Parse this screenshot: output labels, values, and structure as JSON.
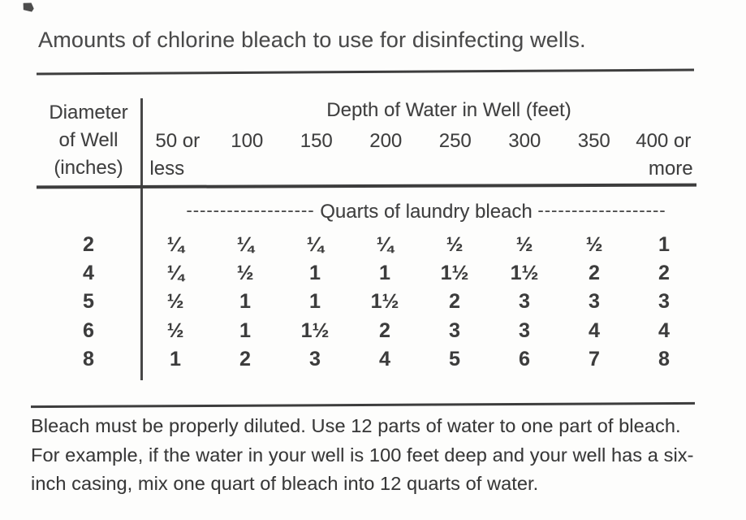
{
  "title": "Amounts of chlorine bleach to use for disinfecting wells.",
  "table": {
    "row_header": {
      "line1": "Diameter",
      "line2": "of Well",
      "line3": "(inches)"
    },
    "span_header": "Depth of Water in Well (feet)",
    "columns": [
      {
        "line1": "50 or",
        "line2": "less"
      },
      {
        "line1": "100",
        "line2": ""
      },
      {
        "line1": "150",
        "line2": ""
      },
      {
        "line1": "200",
        "line2": ""
      },
      {
        "line1": "250",
        "line2": ""
      },
      {
        "line1": "300",
        "line2": ""
      },
      {
        "line1": "350",
        "line2": ""
      },
      {
        "line1": "400 or",
        "line2": "more"
      }
    ],
    "units_dashes_left": "-------------------",
    "units_label": "Quarts of laundry bleach",
    "units_dashes_right": "-------------------",
    "rows": [
      {
        "diameter": "2",
        "values": [
          "¼",
          "¼",
          "¼",
          "¼",
          "½",
          "½",
          "½",
          "1"
        ]
      },
      {
        "diameter": "4",
        "values": [
          "¼",
          "½",
          "1",
          "1",
          "1½",
          "1½",
          "2",
          "2"
        ]
      },
      {
        "diameter": "5",
        "values": [
          "½",
          "1",
          "1",
          "1½",
          "2",
          "3",
          "3",
          "3"
        ]
      },
      {
        "diameter": "6",
        "values": [
          "½",
          "1",
          "1½",
          "2",
          "3",
          "3",
          "4",
          "4"
        ]
      },
      {
        "diameter": "8",
        "values": [
          "1",
          "2",
          "3",
          "4",
          "5",
          "6",
          "7",
          "8"
        ]
      }
    ]
  },
  "footnote": {
    "line1": "Bleach must be properly diluted. Use 12 parts of water to one part of bleach.",
    "line2": "For example, if the water in your well is 100 feet deep and your well has a six-",
    "line3": "inch casing, mix one quart of bleach into 12 quarts of water."
  }
}
